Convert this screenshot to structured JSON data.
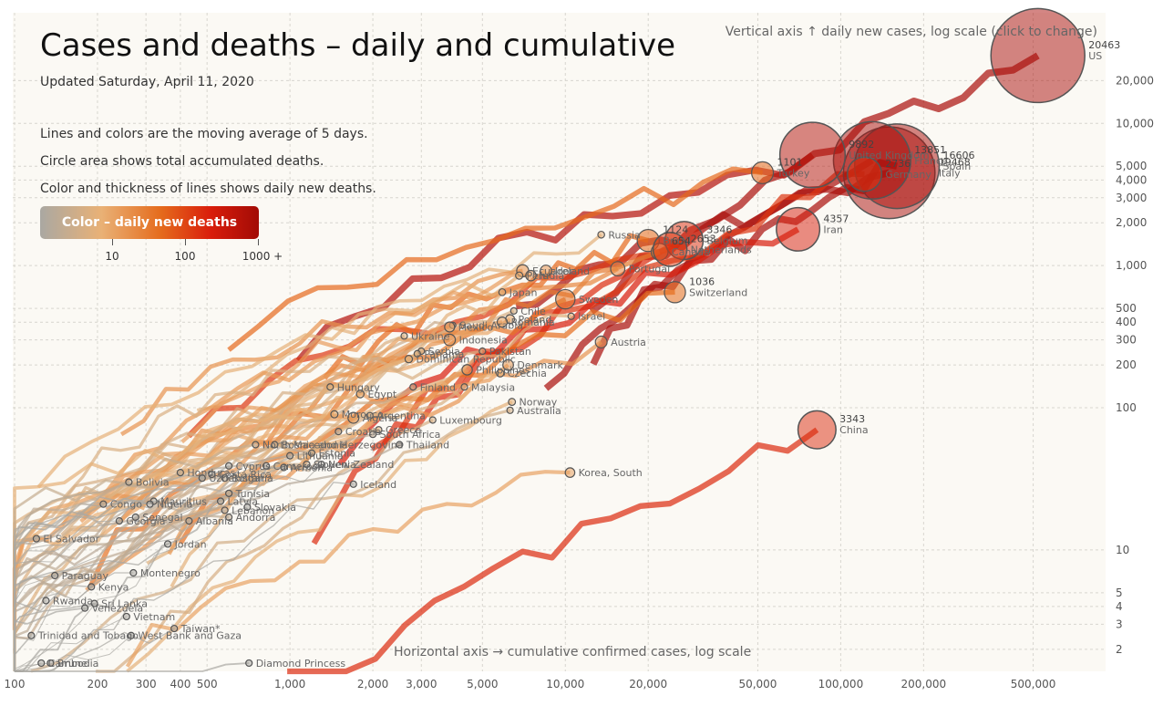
{
  "title": "Cases and deaths – daily and cumulative",
  "updated": "Updated Saturday, April 11, 2020",
  "notes": [
    "Lines and colors are the moving average of 5 days.",
    "Circle area shows total accumulated deaths.",
    "Color and thickness of lines shows daily new deaths."
  ],
  "legend": {
    "label": "Color – daily new deaths",
    "ticks": [
      {
        "value": 10,
        "label": "10"
      },
      {
        "value": 100,
        "label": "100"
      },
      {
        "value": 1000,
        "label": "1000 +"
      }
    ]
  },
  "vertical_axis_note": "Vertical axis ↑ daily new cases, log scale (click to change)",
  "horizontal_axis_note": "Horizontal axis → cumulative confirmed cases, log scale",
  "chart_data": {
    "type": "scatter",
    "x_scale": "log",
    "y_scale": "log",
    "xlim": [
      100,
      650000
    ],
    "ylim": [
      1.4,
      60000
    ],
    "grid": true,
    "x_ticks": [
      {
        "v": 100,
        "l": "100"
      },
      {
        "v": 200,
        "l": "200"
      },
      {
        "v": 300,
        "l": "300"
      },
      {
        "v": 400,
        "l": "400"
      },
      {
        "v": 500,
        "l": "500"
      },
      {
        "v": 1000,
        "l": "1,000"
      },
      {
        "v": 2000,
        "l": "2,000"
      },
      {
        "v": 3000,
        "l": "3,000"
      },
      {
        "v": 5000,
        "l": "5,000"
      },
      {
        "v": 10000,
        "l": "10,000"
      },
      {
        "v": 20000,
        "l": "20,000"
      },
      {
        "v": 50000,
        "l": "50,000"
      },
      {
        "v": 100000,
        "l": "100,000"
      },
      {
        "v": 200000,
        "l": "200,000"
      },
      {
        "v": 500000,
        "l": "500,000"
      }
    ],
    "y_ticks": [
      {
        "v": 2,
        "l": "2"
      },
      {
        "v": 3,
        "l": "3"
      },
      {
        "v": 4,
        "l": "4"
      },
      {
        "v": 5,
        "l": "5"
      },
      {
        "v": 10,
        "l": "10"
      },
      {
        "v": 100,
        "l": "100"
      },
      {
        "v": 200,
        "l": "200"
      },
      {
        "v": 300,
        "l": "300"
      },
      {
        "v": 400,
        "l": "400"
      },
      {
        "v": 500,
        "l": "500"
      },
      {
        "v": 1000,
        "l": "1,000"
      },
      {
        "v": 2000,
        "l": "2,000"
      },
      {
        "v": 3000,
        "l": "3,000"
      },
      {
        "v": 4000,
        "l": "4,000"
      },
      {
        "v": 5000,
        "l": "5,000"
      },
      {
        "v": 10000,
        "l": "10,000"
      },
      {
        "v": 20000,
        "l": "20,000"
      }
    ],
    "countries": [
      {
        "name": "US",
        "deaths": 20463,
        "deaths_label": "20463",
        "x": 520000,
        "y": 30000
      },
      {
        "name": "Italy",
        "deaths": 19468,
        "deaths_label": "19468",
        "x": 150000,
        "y": 4500
      },
      {
        "name": "Spain",
        "deaths": 16606,
        "deaths_label": "16606",
        "x": 160000,
        "y": 5000
      },
      {
        "name": "France",
        "deaths": 13851,
        "deaths_label": "13851",
        "x": 130000,
        "y": 5500
      },
      {
        "name": "United Kingdom",
        "deaths": 9892,
        "deaths_label": "9892",
        "x": 79000,
        "y": 6000
      },
      {
        "name": "Germany",
        "deaths": 2736,
        "deaths_label": "2736",
        "x": 122000,
        "y": 4400
      },
      {
        "name": "Iran",
        "deaths": 4357,
        "deaths_label": "4357",
        "x": 70000,
        "y": 1800
      },
      {
        "name": "China",
        "deaths": 3343,
        "deaths_label": "3343",
        "x": 82000,
        "y": 70
      },
      {
        "name": "Belgium",
        "deaths": 3346,
        "deaths_label": "3346",
        "x": 27000,
        "y": 1500
      },
      {
        "name": "Netherlands",
        "deaths": 2653,
        "deaths_label": "2653",
        "x": 24000,
        "y": 1300
      },
      {
        "name": "Brazil",
        "deaths": 1124,
        "deaths_label": "1124",
        "x": 20000,
        "y": 1500
      },
      {
        "name": "Canada",
        "deaths": 654,
        "deaths_label": "654",
        "x": 22000,
        "y": 1250
      },
      {
        "name": "Turkey",
        "deaths": 1101,
        "deaths_label": "1101",
        "x": 52000,
        "y": 4500
      },
      {
        "name": "Switzerland",
        "deaths": 1036,
        "deaths_label": "1036",
        "x": 25000,
        "y": 650
      },
      {
        "name": "Portugal",
        "deaths": 470,
        "deaths_label": "",
        "x": 15500,
        "y": 950
      },
      {
        "name": "Sweden",
        "deaths": 870,
        "deaths_label": "",
        "x": 10000,
        "y": 580
      },
      {
        "name": "Russia",
        "deaths": 106,
        "deaths_label": "",
        "x": 13500,
        "y": 1650
      },
      {
        "name": "Austria",
        "deaths": 319,
        "deaths_label": "",
        "x": 13500,
        "y": 290
      },
      {
        "name": "Israel",
        "deaths": 95,
        "deaths_label": "",
        "x": 10500,
        "y": 440
      },
      {
        "name": "Ireland",
        "deaths": 287,
        "deaths_label": "",
        "x": 8500,
        "y": 920
      },
      {
        "name": "Ecuador",
        "deaths": 333,
        "deaths_label": "",
        "x": 7000,
        "y": 920
      },
      {
        "name": "Peru",
        "deaths": 121,
        "deaths_label": "",
        "x": 6800,
        "y": 850
      },
      {
        "name": "India",
        "deaths": 249,
        "deaths_label": "",
        "x": 7500,
        "y": 850
      },
      {
        "name": "Japan",
        "deaths": 108,
        "deaths_label": "",
        "x": 5900,
        "y": 650
      },
      {
        "name": "Chile",
        "deaths": 65,
        "deaths_label": "",
        "x": 6500,
        "y": 480
      },
      {
        "name": "Poland",
        "deaths": 183,
        "deaths_label": "",
        "x": 6300,
        "y": 420
      },
      {
        "name": "Saudi Arabia",
        "deaths": 41,
        "deaths_label": "",
        "x": 3900,
        "y": 380
      },
      {
        "name": "Mexico",
        "deaths": 233,
        "deaths_label": "",
        "x": 3800,
        "y": 370
      },
      {
        "name": "Romania",
        "deaths": 237,
        "deaths_label": "",
        "x": 5900,
        "y": 400
      },
      {
        "name": "Indonesia",
        "deaths": 306,
        "deaths_label": "",
        "x": 3800,
        "y": 300
      },
      {
        "name": "Ukraine",
        "deaths": 69,
        "deaths_label": "",
        "x": 2600,
        "y": 320
      },
      {
        "name": "Pakistan",
        "deaths": 71,
        "deaths_label": "",
        "x": 5000,
        "y": 250
      },
      {
        "name": "Serbia",
        "deaths": 61,
        "deaths_label": "",
        "x": 3000,
        "y": 250
      },
      {
        "name": "Panama",
        "deaths": 79,
        "deaths_label": "",
        "x": 2900,
        "y": 240
      },
      {
        "name": "Dominican Republic",
        "deaths": 126,
        "deaths_label": "",
        "x": 2700,
        "y": 220
      },
      {
        "name": "Philippines",
        "deaths": 247,
        "deaths_label": "",
        "x": 4400,
        "y": 185
      },
      {
        "name": "Denmark",
        "deaths": 260,
        "deaths_label": "",
        "x": 6200,
        "y": 200
      },
      {
        "name": "Czechia",
        "deaths": 129,
        "deaths_label": "",
        "x": 5800,
        "y": 175
      },
      {
        "name": "Finland",
        "deaths": 42,
        "deaths_label": "",
        "x": 2800,
        "y": 140
      },
      {
        "name": "Malaysia",
        "deaths": 70,
        "deaths_label": "",
        "x": 4300,
        "y": 140
      },
      {
        "name": "Hungary",
        "deaths": 85,
        "deaths_label": "",
        "x": 1400,
        "y": 140
      },
      {
        "name": "Egypt",
        "deaths": 135,
        "deaths_label": "",
        "x": 1800,
        "y": 125
      },
      {
        "name": "Norway",
        "deaths": 113,
        "deaths_label": "",
        "x": 6400,
        "y": 110
      },
      {
        "name": "Australia",
        "deaths": 56,
        "deaths_label": "",
        "x": 6300,
        "y": 96
      },
      {
        "name": "Morocco",
        "deaths": 118,
        "deaths_label": "",
        "x": 1450,
        "y": 90
      },
      {
        "name": "Argentina",
        "deaths": 83,
        "deaths_label": "",
        "x": 1950,
        "y": 88
      },
      {
        "name": "Algeria",
        "deaths": 275,
        "deaths_label": "",
        "x": 1700,
        "y": 85
      },
      {
        "name": "Luxembourg",
        "deaths": 66,
        "deaths_label": "",
        "x": 3300,
        "y": 82
      },
      {
        "name": "Croatia",
        "deaths": 21,
        "deaths_label": "",
        "x": 1500,
        "y": 68
      },
      {
        "name": "Greece",
        "deaths": 93,
        "deaths_label": "",
        "x": 2100,
        "y": 70
      },
      {
        "name": "South Africa",
        "deaths": 25,
        "deaths_label": "",
        "x": 2000,
        "y": 65
      },
      {
        "name": "Thailand",
        "deaths": 19,
        "deaths_label": "",
        "x": 2500,
        "y": 55
      },
      {
        "name": "Korea, South",
        "deaths": 211,
        "deaths_label": "",
        "x": 10400,
        "y": 35
      },
      {
        "name": "North Macedonia",
        "deaths": 34,
        "deaths_label": "",
        "x": 750,
        "y": 55
      },
      {
        "name": "Bosnia and Herzegovina",
        "deaths": 36,
        "deaths_label": "",
        "x": 880,
        "y": 55
      },
      {
        "name": "Estonia",
        "deaths": 24,
        "deaths_label": "",
        "x": 1200,
        "y": 48
      },
      {
        "name": "Lithuania",
        "deaths": 15,
        "deaths_label": "",
        "x": 1000,
        "y": 46
      },
      {
        "name": "New Zealand",
        "deaths": 4,
        "deaths_label": "",
        "x": 1300,
        "y": 40
      },
      {
        "name": "Slovenia",
        "deaths": 40,
        "deaths_label": "",
        "x": 1150,
        "y": 40
      },
      {
        "name": "Armenia",
        "deaths": 12,
        "deaths_label": "",
        "x": 950,
        "y": 38
      },
      {
        "name": "Cyprus",
        "deaths": 11,
        "deaths_label": "",
        "x": 600,
        "y": 39
      },
      {
        "name": "Cameroon",
        "deaths": 17,
        "deaths_label": "",
        "x": 820,
        "y": 39
      },
      {
        "name": "Iceland",
        "deaths": 6,
        "deaths_label": "",
        "x": 1700,
        "y": 29
      },
      {
        "name": "Costa Rica",
        "deaths": 2,
        "deaths_label": "",
        "x": 520,
        "y": 34
      },
      {
        "name": "Uzbekistan",
        "deaths": 4,
        "deaths_label": "",
        "x": 480,
        "y": 32
      },
      {
        "name": "Bulgaria",
        "deaths": 24,
        "deaths_label": "",
        "x": 580,
        "y": 32
      },
      {
        "name": "Bolivia",
        "deaths": 20,
        "deaths_label": "",
        "x": 260,
        "y": 30
      },
      {
        "name": "Honduras",
        "deaths": 25,
        "deaths_label": "",
        "x": 400,
        "y": 35
      },
      {
        "name": "Tunisia",
        "deaths": 25,
        "deaths_label": "",
        "x": 600,
        "y": 25
      },
      {
        "name": "Latvia",
        "deaths": 2,
        "deaths_label": "",
        "x": 560,
        "y": 22
      },
      {
        "name": "Slovakia",
        "deaths": 2,
        "deaths_label": "",
        "x": 700,
        "y": 20
      },
      {
        "name": "Lebanon",
        "deaths": 21,
        "deaths_label": "",
        "x": 580,
        "y": 19
      },
      {
        "name": "Andorra",
        "deaths": 26,
        "deaths_label": "",
        "x": 600,
        "y": 17
      },
      {
        "name": "Albania",
        "deaths": 23,
        "deaths_label": "",
        "x": 430,
        "y": 16
      },
      {
        "name": "Congo",
        "deaths": 20,
        "deaths_label": "",
        "x": 210,
        "y": 21
      },
      {
        "name": "Mauritius",
        "deaths": 7,
        "deaths_label": "",
        "x": 320,
        "y": 22
      },
      {
        "name": "Nigeria",
        "deaths": 10,
        "deaths_label": "",
        "x": 310,
        "y": 21
      },
      {
        "name": "Senegal",
        "deaths": 2,
        "deaths_label": "",
        "x": 275,
        "y": 17
      },
      {
        "name": "Georgia",
        "deaths": 3,
        "deaths_label": "",
        "x": 240,
        "y": 16
      },
      {
        "name": "El Salvador",
        "deaths": 5,
        "deaths_label": "",
        "x": 120,
        "y": 12
      },
      {
        "name": "Jordan",
        "deaths": 7,
        "deaths_label": "",
        "x": 360,
        "y": 11
      },
      {
        "name": "Paraguay",
        "deaths": 8,
        "deaths_label": "",
        "x": 140,
        "y": 6.6
      },
      {
        "name": "Montenegro",
        "deaths": 5,
        "deaths_label": "",
        "x": 270,
        "y": 6.9
      },
      {
        "name": "Kenya",
        "deaths": 7,
        "deaths_label": "",
        "x": 190,
        "y": 5.5
      },
      {
        "name": "Rwanda",
        "deaths": 0,
        "deaths_label": "",
        "x": 130,
        "y": 4.4
      },
      {
        "name": "Sri Lanka",
        "deaths": 7,
        "deaths_label": "",
        "x": 195,
        "y": 4.2
      },
      {
        "name": "Venezuela",
        "deaths": 9,
        "deaths_label": "",
        "x": 180,
        "y": 3.9
      },
      {
        "name": "Vietnam",
        "deaths": 0,
        "deaths_label": "",
        "x": 255,
        "y": 3.4
      },
      {
        "name": "Taiwan*",
        "deaths": 6,
        "deaths_label": "",
        "x": 380,
        "y": 2.8
      },
      {
        "name": "Trinidad and Tobago",
        "deaths": 8,
        "deaths_label": "",
        "x": 115,
        "y": 2.5
      },
      {
        "name": "West Bank and Gaza",
        "deaths": 2,
        "deaths_label": "",
        "x": 265,
        "y": 2.5
      },
      {
        "name": "Cambodia",
        "deaths": 0,
        "deaths_label": "",
        "x": 125,
        "y": 1.6
      },
      {
        "name": "Brunei",
        "deaths": 1,
        "deaths_label": "",
        "x": 135,
        "y": 1.6
      },
      {
        "name": "Diamond Princess",
        "deaths": 11,
        "deaths_label": "",
        "x": 710,
        "y": 1.6
      }
    ]
  }
}
